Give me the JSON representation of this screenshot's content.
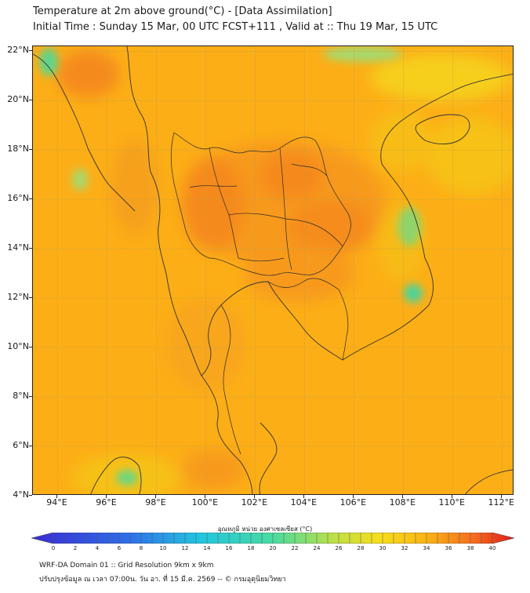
{
  "title": {
    "line1": "Temperature at 2m above ground(°C) - [Data Assimilation]",
    "line2": "Initial Time : Sunday 15 Mar, 00 UTC FCST+111 , Valid at :: Thu 19 Mar, 15 UTC"
  },
  "map": {
    "lat_labels": [
      "22°N",
      "20°N",
      "18°N",
      "16°N",
      "14°N",
      "12°N",
      "10°N",
      "8°N",
      "6°N",
      "4°N"
    ],
    "lon_labels": [
      "94°E",
      "96°E",
      "98°E",
      "100°E",
      "102°E",
      "104°E",
      "106°E",
      "108°E",
      "110°E",
      "112°E"
    ],
    "lon_range": [
      93.0,
      112.5
    ],
    "lat_range": [
      4.0,
      22.2
    ],
    "grid": true,
    "field": "2m temperature",
    "colors": {
      "hot": "#f58a1e",
      "warm": "#fbb214",
      "mild": "#f6cf1a",
      "cool": "#3ed8a0",
      "base": "#fcae17"
    }
  },
  "colorbar": {
    "title": "อุณหภูมิ หน่วย องศาเซลเซียส (°C)",
    "ticks": [
      "0",
      "2",
      "4",
      "6",
      "8",
      "10",
      "12",
      "14",
      "16",
      "18",
      "20",
      "22",
      "24",
      "26",
      "28",
      "30",
      "32",
      "34",
      "36",
      "38",
      "40"
    ],
    "min": 0,
    "max": 40
  },
  "footer": {
    "line1": "WRF-DA Domain 01 :: Grid Resolution 9km x 9km",
    "line2": "ปรับปรุงข้อมูล ณ เวลา 07:00น. วัน อา. ที่ 15 มี.ค. 2569 -- © กรมอุตุนิยมวิทยา"
  }
}
